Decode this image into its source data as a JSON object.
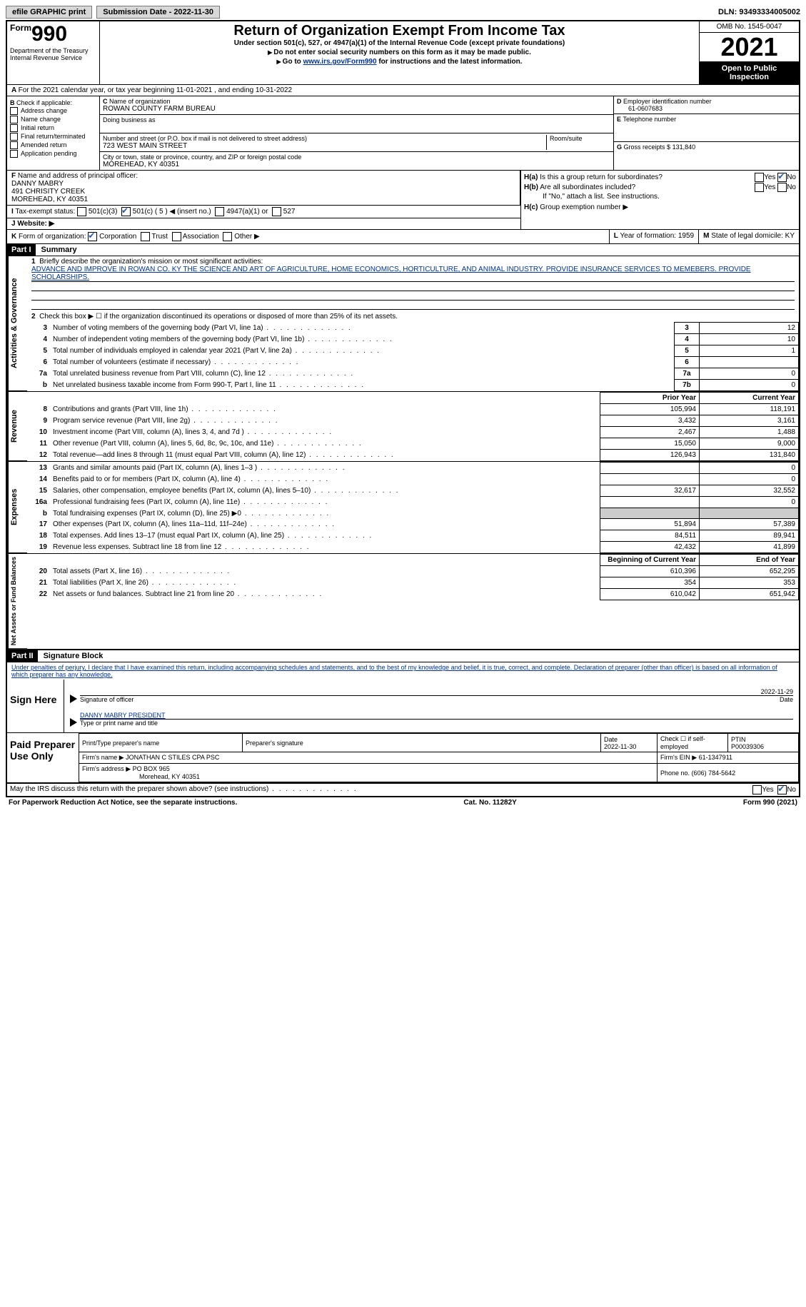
{
  "topbar": {
    "efile": "efile GRAPHIC print",
    "submission_label": "Submission Date - 2022-11-30",
    "dln_label": "DLN: 93493334005002"
  },
  "header": {
    "form_word": "Form",
    "form_num": "990",
    "dept": "Department of the Treasury\nInternal Revenue Service",
    "title": "Return of Organization Exempt From Income Tax",
    "subtitle": "Under section 501(c), 527, or 4947(a)(1) of the Internal Revenue Code (except private foundations)",
    "sub2": "Do not enter social security numbers on this form as it may be made public.",
    "sub3_pre": "Go to ",
    "sub3_link": "www.irs.gov/Form990",
    "sub3_post": " for instructions and the latest information.",
    "omb": "OMB No. 1545-0047",
    "year": "2021",
    "open": "Open to Public Inspection"
  },
  "A": {
    "text": "For the 2021 calendar year, or tax year beginning 11-01-2021   , and ending 10-31-2022"
  },
  "B": {
    "label": "Check if applicable:",
    "opts": [
      "Address change",
      "Name change",
      "Initial return",
      "Final return/terminated",
      "Amended return",
      "Application pending"
    ]
  },
  "C": {
    "name_label": "Name of organization",
    "name": "ROWAN COUNTY FARM BUREAU",
    "dba_label": "Doing business as",
    "dba": "",
    "addr_label": "Number and street (or P.O. box if mail is not delivered to street address)",
    "addr": "723 WEST MAIN STREET",
    "room_label": "Room/suite",
    "city_label": "City or town, state or province, country, and ZIP or foreign postal code",
    "city": "MOREHEAD, KY  40351"
  },
  "D": {
    "label": "Employer identification number",
    "val": "61-0607683"
  },
  "E": {
    "label": "Telephone number",
    "val": ""
  },
  "G": {
    "label": "Gross receipts $",
    "val": "131,840"
  },
  "F": {
    "label": "Name and address of principal officer:",
    "name": "DANNY MABRY",
    "addr1": "491 CHRISITY CREEK",
    "addr2": "MOREHEAD, KY  40351"
  },
  "H": {
    "a": "Is this a group return for subordinates?",
    "b": "Are all subordinates included?",
    "note": "If \"No,\" attach a list. See instructions.",
    "c": "Group exemption number ▶",
    "yes": "Yes",
    "no": "No"
  },
  "I": {
    "label": "Tax-exempt status:",
    "opts": [
      "501(c)(3)",
      "501(c) ( 5 ) ◀ (insert no.)",
      "4947(a)(1) or",
      "527"
    ]
  },
  "J": {
    "label": "Website: ▶"
  },
  "K": {
    "label": "Form of organization:",
    "opts": [
      "Corporation",
      "Trust",
      "Association",
      "Other ▶"
    ]
  },
  "L": {
    "label": "Year of formation:",
    "val": "1959"
  },
  "M": {
    "label": "State of legal domicile:",
    "val": "KY"
  },
  "part1": {
    "hdr": "Part I",
    "title": "Summary",
    "q1_label": "Briefly describe the organization's mission or most significant activities:",
    "q1": "ADVANCE AND IMPROVE IN ROWAN CO. KY THE SCIENCE AND ART OF AGRICULTURE, HOME ECONOMICS, HORTICULTURE, AND ANIMAL INDUSTRY. PROVIDE INSURANCE SERVICES TO MEMEBERS. PROVIDE SCHOLARSHIPS.",
    "q2": "Check this box ▶ ☐ if the organization discontinued its operations or disposed of more than 25% of its net assets.",
    "rows_top": [
      {
        "n": "3",
        "t": "Number of voting members of the governing body (Part VI, line 1a)",
        "box": "3",
        "v": "12"
      },
      {
        "n": "4",
        "t": "Number of independent voting members of the governing body (Part VI, line 1b)",
        "box": "4",
        "v": "10"
      },
      {
        "n": "5",
        "t": "Total number of individuals employed in calendar year 2021 (Part V, line 2a)",
        "box": "5",
        "v": "1"
      },
      {
        "n": "6",
        "t": "Total number of volunteers (estimate if necessary)",
        "box": "6",
        "v": ""
      },
      {
        "n": "7a",
        "t": "Total unrelated business revenue from Part VIII, column (C), line 12",
        "box": "7a",
        "v": "0"
      },
      {
        "n": "b",
        "t": "Net unrelated business taxable income from Form 990-T, Part I, line 11",
        "box": "7b",
        "v": "0"
      }
    ],
    "colhdr_prior": "Prior Year",
    "colhdr_cur": "Current Year",
    "revenue": [
      {
        "n": "8",
        "t": "Contributions and grants (Part VIII, line 1h)",
        "p": "105,994",
        "c": "118,191"
      },
      {
        "n": "9",
        "t": "Program service revenue (Part VIII, line 2g)",
        "p": "3,432",
        "c": "3,161"
      },
      {
        "n": "10",
        "t": "Investment income (Part VIII, column (A), lines 3, 4, and 7d )",
        "p": "2,467",
        "c": "1,488"
      },
      {
        "n": "11",
        "t": "Other revenue (Part VIII, column (A), lines 5, 6d, 8c, 9c, 10c, and 11e)",
        "p": "15,050",
        "c": "9,000"
      },
      {
        "n": "12",
        "t": "Total revenue—add lines 8 through 11 (must equal Part VIII, column (A), line 12)",
        "p": "126,943",
        "c": "131,840"
      }
    ],
    "expenses": [
      {
        "n": "13",
        "t": "Grants and similar amounts paid (Part IX, column (A), lines 1–3 )",
        "p": "",
        "c": "0"
      },
      {
        "n": "14",
        "t": "Benefits paid to or for members (Part IX, column (A), line 4)",
        "p": "",
        "c": "0"
      },
      {
        "n": "15",
        "t": "Salaries, other compensation, employee benefits (Part IX, column (A), lines 5–10)",
        "p": "32,617",
        "c": "32,552"
      },
      {
        "n": "16a",
        "t": "Professional fundraising fees (Part IX, column (A), line 11e)",
        "p": "",
        "c": "0"
      },
      {
        "n": "b",
        "t": "Total fundraising expenses (Part IX, column (D), line 25) ▶0",
        "p": "GREY",
        "c": "GREY"
      },
      {
        "n": "17",
        "t": "Other expenses (Part IX, column (A), lines 11a–11d, 11f–24e)",
        "p": "51,894",
        "c": "57,389"
      },
      {
        "n": "18",
        "t": "Total expenses. Add lines 13–17 (must equal Part IX, column (A), line 25)",
        "p": "84,511",
        "c": "89,941"
      },
      {
        "n": "19",
        "t": "Revenue less expenses. Subtract line 18 from line 12",
        "p": "42,432",
        "c": "41,899"
      }
    ],
    "colhdr_boy": "Beginning of Current Year",
    "colhdr_eoy": "End of Year",
    "netassets": [
      {
        "n": "20",
        "t": "Total assets (Part X, line 16)",
        "p": "610,396",
        "c": "652,295"
      },
      {
        "n": "21",
        "t": "Total liabilities (Part X, line 26)",
        "p": "354",
        "c": "353"
      },
      {
        "n": "22",
        "t": "Net assets or fund balances. Subtract line 21 from line 20",
        "p": "610,042",
        "c": "651,942"
      }
    ],
    "side_act": "Activities & Governance",
    "side_rev": "Revenue",
    "side_exp": "Expenses",
    "side_na": "Net Assets or Fund Balances"
  },
  "part2": {
    "hdr": "Part II",
    "title": "Signature Block",
    "decl": "Under penalties of perjury, I declare that I have examined this return, including accompanying schedules and statements, and to the best of my knowledge and belief, it is true, correct, and complete. Declaration of preparer (other than officer) is based on all information of which preparer has any knowledge.",
    "sign_here": "Sign Here",
    "sig_officer": "Signature of officer",
    "sig_date": "2022-11-29",
    "date_label": "Date",
    "name_title": "DANNY MABRY PRESIDENT",
    "name_title_label": "Type or print name and title",
    "paid": "Paid Preparer Use Only",
    "pt_name_label": "Print/Type preparer's name",
    "pt_sig_label": "Preparer's signature",
    "pt_date_label": "Date",
    "pt_date": "2022-11-30",
    "pt_check_label": "Check ☐ if self-employed",
    "ptin_label": "PTIN",
    "ptin": "P00039306",
    "firm_name_label": "Firm's name ▶",
    "firm_name": "JONATHAN C STILES CPA PSC",
    "firm_ein_label": "Firm's EIN ▶",
    "firm_ein": "61-1347911",
    "firm_addr_label": "Firm's address ▶",
    "firm_addr1": "PO BOX 965",
    "firm_addr2": "Morehead, KY  40351",
    "firm_phone_label": "Phone no.",
    "firm_phone": "(606) 784-5642"
  },
  "footer": {
    "q": "May the IRS discuss this return with the preparer shown above? (see instructions)",
    "yes": "Yes",
    "no": "No",
    "pra": "For Paperwork Reduction Act Notice, see the separate instructions.",
    "cat": "Cat. No. 11282Y",
    "form": "Form 990 (2021)"
  }
}
